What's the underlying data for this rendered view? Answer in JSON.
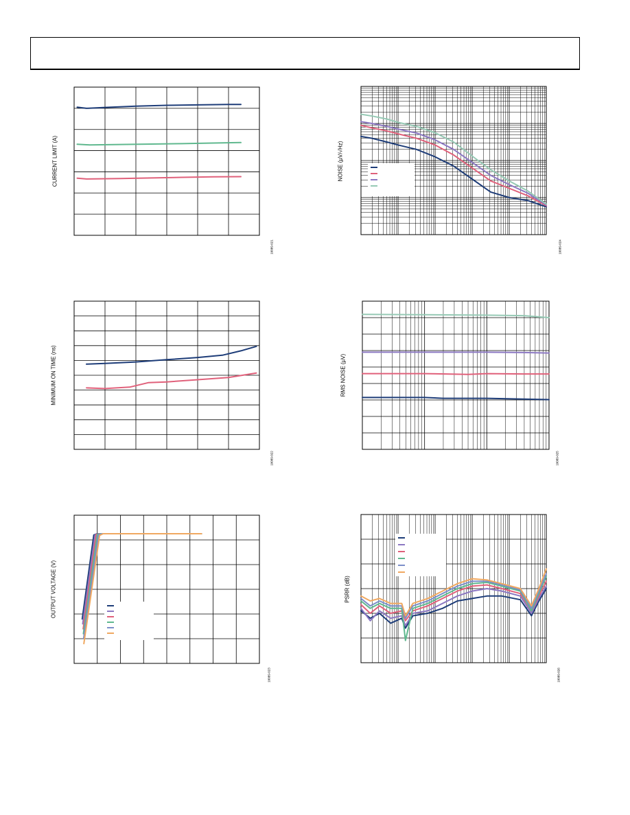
{
  "chart_data": [
    {
      "id": "chart1",
      "type": "line",
      "title": "",
      "xlabel": "",
      "ylabel": "CURRENT LIMIT (A)",
      "figure_id": "10089-021",
      "xlim": [
        0,
        6
      ],
      "ylim": [
        0,
        7
      ],
      "x_divisions": 6,
      "y_divisions": 7,
      "x_scale": "linear",
      "grid": true,
      "series": [
        {
          "color": "#1d3c78",
          "x": [
            0.1,
            0.4,
            1.0,
            2.0,
            3.0,
            4.0,
            5.0,
            5.4
          ],
          "y": [
            6.05,
            6.0,
            6.04,
            6.1,
            6.14,
            6.16,
            6.18,
            6.18
          ]
        },
        {
          "color": "#5fb88e",
          "x": [
            0.1,
            0.5,
            1.5,
            2.5,
            3.5,
            4.5,
            5.4
          ],
          "y": [
            4.3,
            4.27,
            4.29,
            4.31,
            4.33,
            4.36,
            4.38
          ]
        },
        {
          "color": "#e0607a",
          "x": [
            0.1,
            0.4,
            1.5,
            2.5,
            3.5,
            4.5,
            5.4
          ],
          "y": [
            2.7,
            2.66,
            2.68,
            2.71,
            2.74,
            2.76,
            2.77
          ]
        }
      ]
    },
    {
      "id": "chart2",
      "type": "line",
      "title": "",
      "xlabel": "",
      "ylabel": "NOISE (µV/√Hz)",
      "figure_id": "10089-024",
      "xlim": [
        0,
        5
      ],
      "ylim": [
        0,
        4
      ],
      "x_divisions": 5,
      "y_divisions": 4,
      "x_scale": "log",
      "y_scale": "log",
      "grid": true,
      "legend": {
        "placement": "middle-left",
        "entries": [
          "",
          "",
          "",
          ""
        ]
      },
      "series": [
        {
          "color": "#1d3c78",
          "x": [
            0.0,
            0.3,
            0.7,
            1.0,
            1.5,
            2.0,
            2.5,
            3.0,
            3.5,
            4.0,
            4.5,
            5.0
          ],
          "y": [
            2.65,
            2.6,
            2.5,
            2.42,
            2.3,
            2.1,
            1.85,
            1.5,
            1.15,
            1.0,
            0.92,
            0.75
          ]
        },
        {
          "color": "#e0607a",
          "x": [
            0.0,
            0.3,
            0.7,
            1.0,
            1.5,
            2.0,
            2.5,
            3.0,
            3.5,
            4.0,
            4.5,
            5.0
          ],
          "y": [
            2.95,
            2.88,
            2.8,
            2.72,
            2.6,
            2.42,
            2.15,
            1.8,
            1.45,
            1.25,
            1.05,
            0.78
          ]
        },
        {
          "color": "#8b77c2",
          "x": [
            0.0,
            0.3,
            0.7,
            1.0,
            1.5,
            2.0,
            2.5,
            3.0,
            3.5,
            4.0,
            4.5,
            5.0
          ],
          "y": [
            3.05,
            3.0,
            2.92,
            2.85,
            2.74,
            2.56,
            2.3,
            1.95,
            1.6,
            1.35,
            1.12,
            0.8
          ]
        },
        {
          "color": "#95c9b4",
          "x": [
            0.0,
            0.3,
            0.7,
            1.0,
            1.5,
            2.0,
            2.5,
            3.0,
            3.5,
            4.0,
            4.5,
            5.0
          ],
          "y": [
            3.25,
            3.2,
            3.12,
            3.03,
            2.92,
            2.75,
            2.5,
            2.12,
            1.75,
            1.45,
            1.18,
            0.82
          ]
        }
      ]
    },
    {
      "id": "chart3",
      "type": "line",
      "title": "",
      "xlabel": "",
      "ylabel": "MINIMUM ON TIME (ns)",
      "figure_id": "10089-022",
      "xlim": [
        0,
        6
      ],
      "ylim": [
        0,
        10
      ],
      "x_divisions": 6,
      "y_divisions": 10,
      "x_scale": "linear",
      "grid": true,
      "series": [
        {
          "color": "#1d3c78",
          "x": [
            0.4,
            1.0,
            2.0,
            3.0,
            4.0,
            4.8,
            5.4,
            5.9
          ],
          "y": [
            5.75,
            5.8,
            5.9,
            6.05,
            6.2,
            6.35,
            6.65,
            6.95
          ]
        },
        {
          "color": "#e0607a",
          "x": [
            0.4,
            1.0,
            1.8,
            2.4,
            3.0,
            4.0,
            5.0,
            5.9
          ],
          "y": [
            4.15,
            4.1,
            4.2,
            4.5,
            4.55,
            4.7,
            4.85,
            5.15
          ]
        }
      ]
    },
    {
      "id": "chart4",
      "type": "line",
      "title": "",
      "xlabel": "",
      "ylabel": "RMS NOISE (µV)",
      "figure_id": "10089-025",
      "xlim": [
        0,
        3
      ],
      "ylim": [
        0,
        9
      ],
      "x_divisions": 3,
      "y_divisions": 9,
      "x_scale": "log",
      "grid": true,
      "series": [
        {
          "color": "#95c9b4",
          "x": [
            0.0,
            1.0,
            2.0,
            2.6,
            3.0
          ],
          "y": [
            8.2,
            8.18,
            8.15,
            8.12,
            8.0
          ]
        },
        {
          "color": "#8b77c2",
          "x": [
            0.0,
            1.0,
            2.0,
            2.6,
            3.0
          ],
          "y": [
            5.9,
            5.9,
            5.9,
            5.88,
            5.85
          ]
        },
        {
          "color": "#e0607a",
          "x": [
            0.0,
            1.0,
            1.7,
            2.0,
            2.6,
            3.0
          ],
          "y": [
            4.6,
            4.6,
            4.55,
            4.6,
            4.58,
            4.58
          ]
        },
        {
          "color": "#1d3c78",
          "x": [
            0.0,
            1.0,
            1.3,
            2.0,
            2.6,
            3.0
          ],
          "y": [
            3.15,
            3.15,
            3.1,
            3.1,
            3.05,
            3.02
          ]
        }
      ]
    },
    {
      "id": "chart5",
      "type": "line",
      "title": "",
      "xlabel": "",
      "ylabel": "OUTPUT VOLTAGE (V)",
      "figure_id": "10089-023",
      "xlim": [
        0,
        8
      ],
      "ylim": [
        0,
        6
      ],
      "x_divisions": 8,
      "y_divisions": 6,
      "x_scale": "linear",
      "grid": true,
      "legend": {
        "placement": "bottom-left",
        "entries": [
          "",
          "",
          "",
          "",
          "",
          ""
        ]
      },
      "series": [
        {
          "color": "#1d3c78",
          "x": [
            0.35,
            0.85,
            1.0,
            5.5
          ],
          "y": [
            1.8,
            5.2,
            5.25,
            5.25
          ]
        },
        {
          "color": "#8b77c2",
          "x": [
            0.37,
            0.9,
            1.05,
            5.5
          ],
          "y": [
            1.6,
            5.2,
            5.25,
            5.25
          ]
        },
        {
          "color": "#e0607a",
          "x": [
            0.39,
            0.95,
            1.1,
            5.5
          ],
          "y": [
            1.4,
            5.22,
            5.25,
            5.25
          ]
        },
        {
          "color": "#5fb88e",
          "x": [
            0.4,
            1.0,
            1.15,
            5.5
          ],
          "y": [
            1.2,
            5.22,
            5.25,
            5.25
          ]
        },
        {
          "color": "#7b8ec8",
          "x": [
            0.41,
            1.05,
            1.2,
            5.5
          ],
          "y": [
            1.0,
            5.2,
            5.25,
            5.25
          ]
        },
        {
          "color": "#f0a860",
          "x": [
            0.42,
            1.1,
            1.25,
            5.5
          ],
          "y": [
            0.8,
            5.18,
            5.25,
            5.25
          ]
        }
      ]
    },
    {
      "id": "chart6",
      "type": "line",
      "title": "",
      "xlabel": "",
      "ylabel": "PSRR (dB)",
      "figure_id": "10089-026",
      "xlim": [
        0,
        5
      ],
      "ylim": [
        0,
        6
      ],
      "x_divisions": 5,
      "y_divisions": 6,
      "x_scale": "log",
      "grid": true,
      "legend": {
        "placement": "top-left",
        "entries": [
          "",
          "",
          "",
          "",
          "",
          ""
        ]
      },
      "series": [
        {
          "color": "#1d3c78",
          "x": [
            0.0,
            0.25,
            0.5,
            0.8,
            1.1,
            1.2,
            1.4,
            1.8,
            2.2,
            2.6,
            3.0,
            3.4,
            3.8,
            4.3,
            4.6,
            4.8,
            5.0
          ],
          "y": [
            2.1,
            1.8,
            2.0,
            1.6,
            1.8,
            1.4,
            1.9,
            2.0,
            2.2,
            2.5,
            2.6,
            2.7,
            2.7,
            2.55,
            1.9,
            2.5,
            3.0
          ]
        },
        {
          "color": "#8b77c2",
          "x": [
            0.0,
            0.25,
            0.5,
            0.8,
            1.1,
            1.2,
            1.4,
            1.8,
            2.2,
            2.6,
            3.0,
            3.4,
            3.8,
            4.3,
            4.6,
            4.8,
            5.0
          ],
          "y": [
            2.2,
            1.7,
            2.1,
            1.8,
            1.9,
            1.5,
            2.0,
            2.1,
            2.4,
            2.7,
            2.9,
            3.0,
            2.9,
            2.7,
            2.0,
            2.6,
            3.1
          ]
        },
        {
          "color": "#e0607a",
          "x": [
            0.0,
            0.25,
            0.5,
            0.8,
            1.1,
            1.2,
            1.4,
            1.8,
            2.2,
            2.6,
            3.0,
            3.4,
            3.8,
            4.3,
            4.6,
            4.8,
            5.0
          ],
          "y": [
            2.35,
            2.0,
            2.3,
            2.0,
            2.1,
            1.7,
            2.1,
            2.3,
            2.6,
            2.9,
            3.1,
            3.15,
            3.0,
            2.8,
            2.1,
            2.7,
            3.3
          ]
        },
        {
          "color": "#5fb88e",
          "x": [
            0.0,
            0.25,
            0.5,
            0.8,
            1.1,
            1.2,
            1.4,
            1.8,
            2.2,
            2.6,
            3.0,
            3.4,
            3.8,
            4.3,
            4.6,
            4.8,
            5.0
          ],
          "y": [
            2.5,
            2.2,
            2.4,
            2.2,
            2.2,
            0.9,
            2.2,
            2.4,
            2.7,
            3.0,
            3.2,
            3.25,
            3.1,
            2.9,
            2.1,
            2.8,
            3.5
          ]
        },
        {
          "color": "#7b8ec8",
          "x": [
            0.0,
            0.25,
            0.5,
            0.8,
            1.1,
            1.2,
            1.4,
            1.8,
            2.2,
            2.6,
            3.0,
            3.4,
            3.8,
            4.3,
            4.6,
            4.8,
            5.0
          ],
          "y": [
            2.6,
            2.3,
            2.5,
            2.3,
            2.3,
            1.8,
            2.3,
            2.5,
            2.8,
            3.1,
            3.3,
            3.3,
            3.15,
            2.95,
            2.2,
            2.9,
            3.6
          ]
        },
        {
          "color": "#f0a860",
          "x": [
            0.0,
            0.25,
            0.5,
            0.8,
            1.1,
            1.2,
            1.4,
            1.8,
            2.2,
            2.6,
            3.0,
            3.4,
            3.8,
            4.3,
            4.6,
            4.8,
            5.0
          ],
          "y": [
            2.7,
            2.5,
            2.6,
            2.4,
            2.4,
            1.9,
            2.4,
            2.6,
            2.9,
            3.2,
            3.4,
            3.35,
            3.2,
            3.0,
            2.3,
            3.0,
            3.8
          ]
        }
      ]
    }
  ]
}
